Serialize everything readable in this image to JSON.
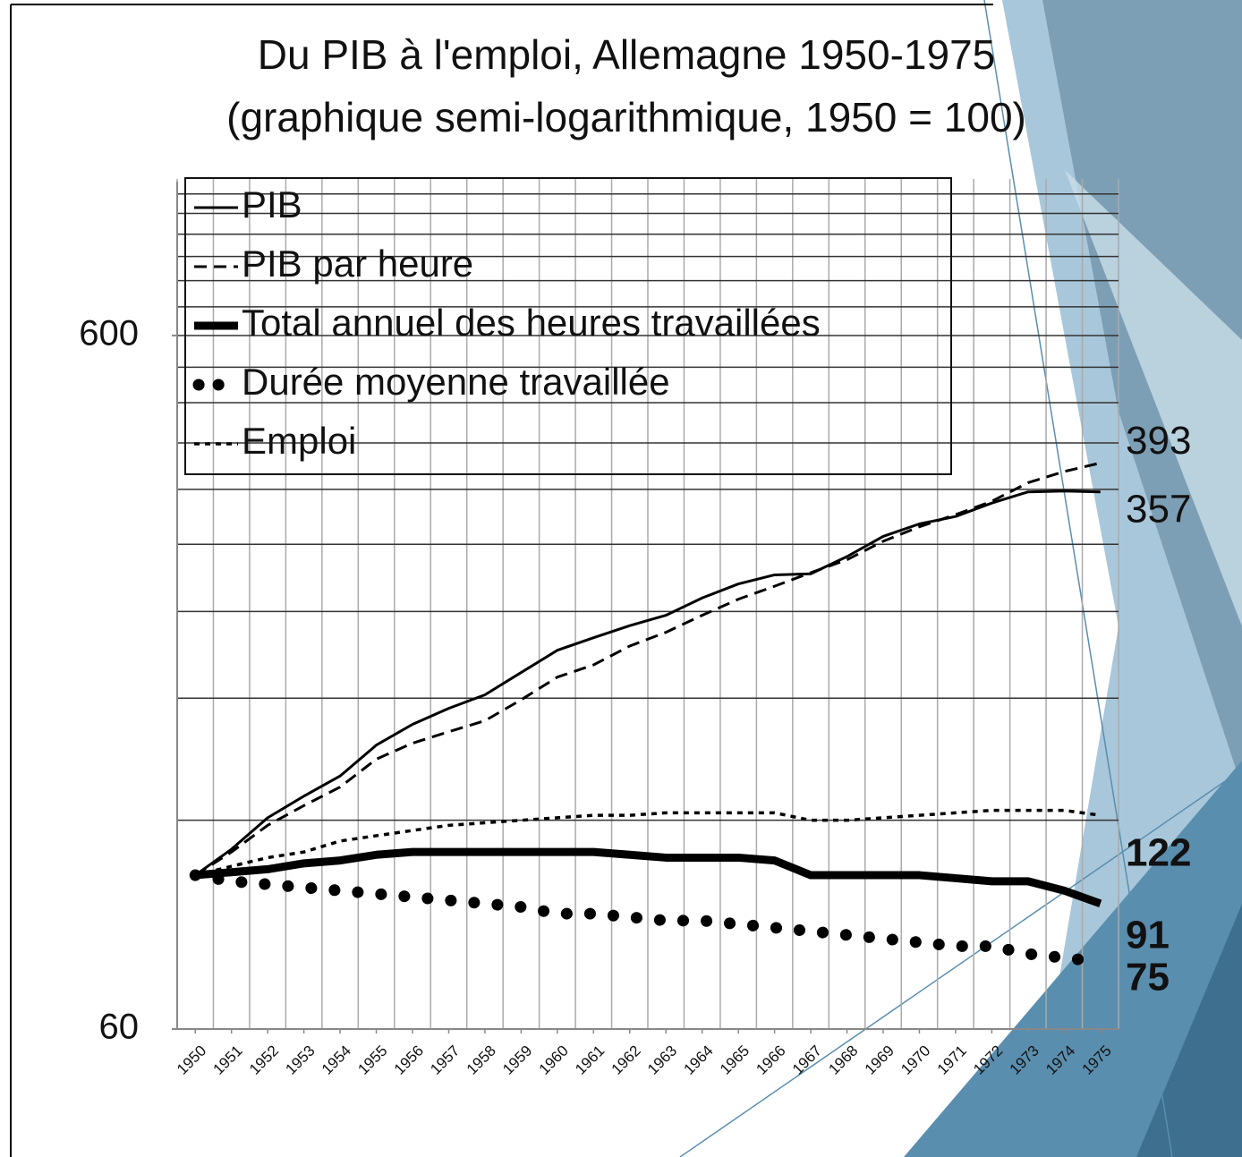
{
  "chart_data": {
    "type": "line",
    "title": "Du PIB à l'emploi, Allemagne 1950-1975",
    "subtitle": "(graphique semi-logarithmique, 1950 = 100)",
    "x": [
      1950,
      1951,
      1952,
      1953,
      1954,
      1955,
      1956,
      1957,
      1958,
      1959,
      1960,
      1961,
      1962,
      1963,
      1964,
      1965,
      1966,
      1967,
      1968,
      1969,
      1970,
      1971,
      1972,
      1973,
      1974,
      1975
    ],
    "xlim": [
      1949.5,
      1975.5
    ],
    "xticks": [
      1950,
      1951,
      1952,
      1953,
      1954,
      1955,
      1956,
      1957,
      1958,
      1959,
      1960,
      1961,
      1962,
      1963,
      1964,
      1965,
      1966,
      1967,
      1968,
      1969,
      1970,
      1971,
      1972,
      1973,
      1974,
      1975
    ],
    "ylim": [
      60,
      1000
    ],
    "yticks": [
      60,
      600
    ],
    "y_gridlines": [
      120,
      180,
      240,
      300,
      360,
      420,
      480,
      540,
      600,
      660,
      720,
      780,
      840,
      900,
      960
    ],
    "log_scale": true,
    "grid": true,
    "legend": "top-left",
    "series": [
      {
        "name": "PIB",
        "color": "#000000",
        "style": "solid",
        "values": [
          100,
          109,
          121,
          130,
          139,
          154,
          165,
          174,
          182,
          196,
          211,
          220,
          229,
          237,
          251,
          263,
          271,
          272,
          288,
          308,
          321,
          329,
          344,
          357,
          358,
          357
        ]
      },
      {
        "name": "PIB par heure",
        "color": "#000000",
        "style": "dashed",
        "values": [
          100,
          108,
          118,
          126,
          134,
          147,
          155,
          161,
          167,
          179,
          193,
          201,
          214,
          224,
          237,
          250,
          261,
          273,
          285,
          303,
          318,
          331,
          346,
          368,
          382,
          393
        ]
      },
      {
        "name": "Total annuel des heures travaillées",
        "color": "#000000",
        "style": "thick",
        "values": [
          100,
          101,
          102,
          104,
          105,
          107,
          108,
          108,
          108,
          108,
          108,
          108,
          107,
          106,
          106,
          106,
          105,
          100,
          100,
          100,
          100,
          99,
          98,
          98,
          95,
          91
        ]
      },
      {
        "name": "Durée moyenne travaillée",
        "color": "#000000",
        "style": "dots",
        "values": [
          100,
          98,
          97,
          96,
          95,
          94,
          93,
          92,
          91,
          90,
          88,
          88,
          87,
          86,
          86,
          85,
          84,
          83,
          82,
          81,
          80,
          79,
          79,
          77,
          76,
          75
        ]
      },
      {
        "name": "Emploi",
        "color": "#000000",
        "style": "dotted",
        "values": [
          100,
          103,
          106,
          108,
          112,
          114,
          116,
          118,
          119,
          120,
          121,
          122,
          122,
          123,
          123,
          123,
          123,
          120,
          120,
          121,
          122,
          123,
          124,
          124,
          124,
          122
        ]
      }
    ]
  }
}
